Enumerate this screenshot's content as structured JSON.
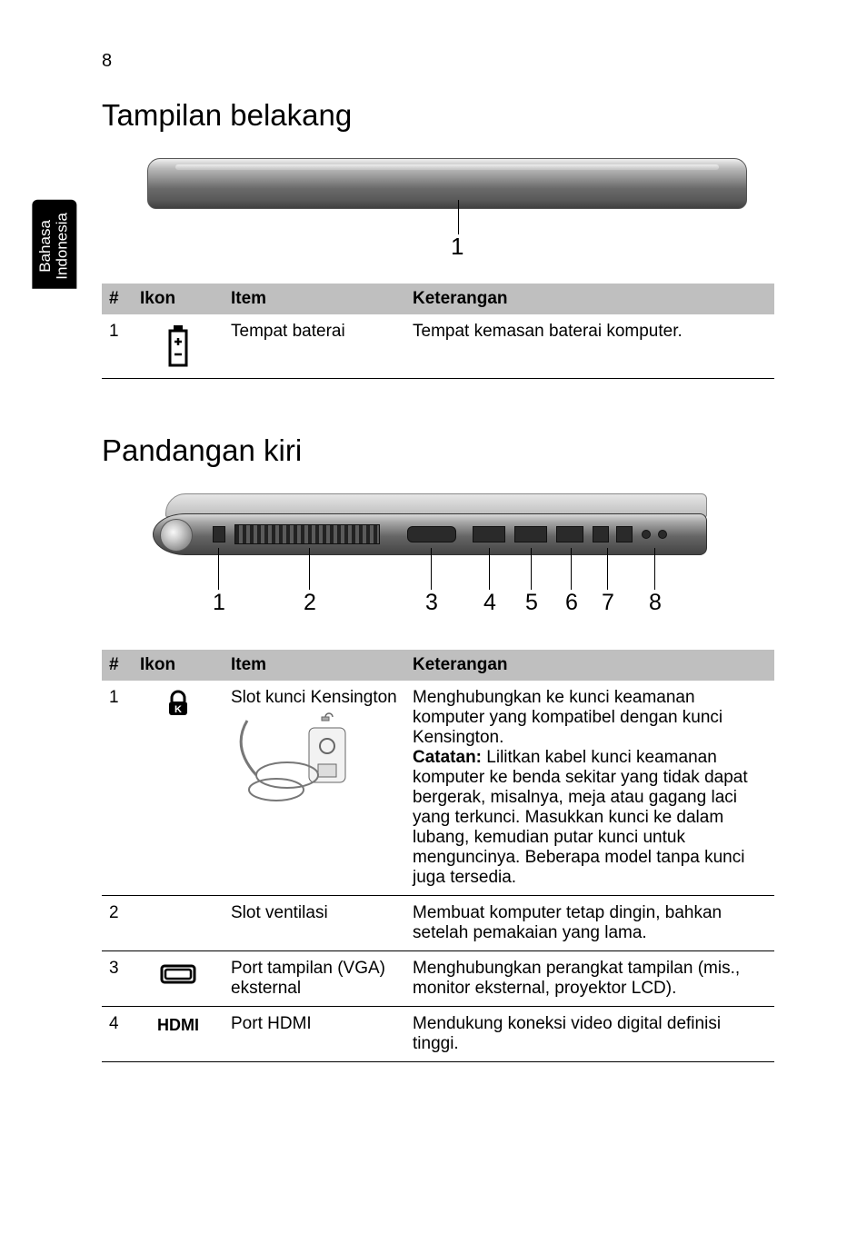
{
  "page_number": "8",
  "side_tab": "Bahasa\nIndonesia",
  "section1": {
    "heading": "Tampilan belakang",
    "callouts": [
      "1"
    ],
    "table": {
      "headers": {
        "num": "#",
        "ikon": "Ikon",
        "item": "Item",
        "ket": "Keterangan"
      },
      "rows": [
        {
          "num": "1",
          "item": "Tempat baterai",
          "ket": "Tempat kemasan baterai komputer."
        }
      ]
    }
  },
  "section2": {
    "heading": "Pandangan kiri",
    "callouts": [
      "1",
      "2",
      "3",
      "4",
      "5",
      "6",
      "7",
      "8"
    ],
    "table": {
      "headers": {
        "num": "#",
        "ikon": "Ikon",
        "item": "Item",
        "ket": "Keterangan"
      },
      "rows": [
        {
          "num": "1",
          "item": "Slot kunci Kensington",
          "ket": "Menghubungkan ke kunci keamanan komputer yang kompatibel dengan kunci Kensington.",
          "note_label": "Catatan:",
          "note": " Lilitkan kabel kunci keamanan komputer ke benda sekitar yang tidak dapat bergerak, misalnya, meja atau gagang laci yang terkunci. Masukkan kunci ke dalam lubang, kemudian putar kunci untuk menguncinya. Beberapa model tanpa kunci juga tersedia."
        },
        {
          "num": "2",
          "item": "Slot ventilasi",
          "ket": "Membuat komputer tetap dingin, bahkan setelah pemakaian yang lama."
        },
        {
          "num": "3",
          "item": "Port tampilan (VGA) eksternal",
          "ket": "Menghubungkan perangkat tampilan (mis., monitor eksternal, proyektor LCD)."
        },
        {
          "num": "4",
          "icon_text": "HDMI",
          "item": "Port HDMI",
          "ket": "Mendukung koneksi video digital definisi tinggi."
        }
      ]
    }
  },
  "colors": {
    "header_bg": "#bfbfbf",
    "text": "#000000",
    "tab_bg": "#000000",
    "tab_fg": "#ffffff"
  }
}
